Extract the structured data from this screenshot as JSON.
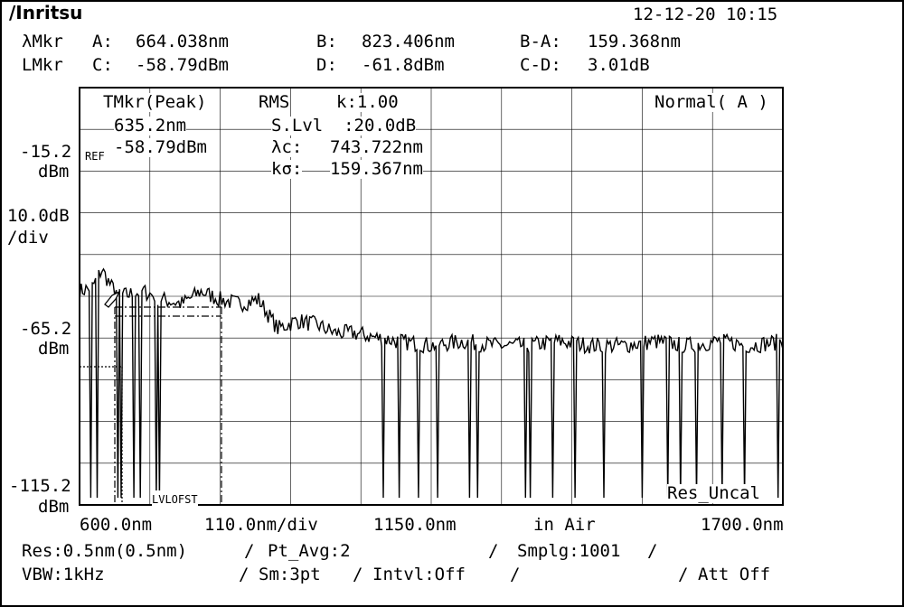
{
  "header": {
    "brand": "/Inritsu",
    "datetime": "12-12-20 10:15"
  },
  "markers": {
    "lambda_row": {
      "label": "λMkr",
      "a_label": "A:",
      "a_value": "664.038nm",
      "b_label": "B:",
      "b_value": "823.406nm",
      "ba_label": "B-A:",
      "ba_value": "159.368nm"
    },
    "level_row": {
      "label": "LMkr",
      "c_label": "C:",
      "c_value": "-58.79dBm",
      "d_label": "D:",
      "d_value": "-61.8dBm",
      "cd_label": "C-D:",
      "cd_value": "3.01dB"
    }
  },
  "overlay": {
    "tmkr_title": "TMkr(Peak)",
    "tmkr_wl": "635.2nm",
    "tmkr_level": "-58.79dBm",
    "rms_title": "RMS",
    "k_label": "k:1.00",
    "slvl": "S.Lvl  :20.0dB",
    "lambda_c_label": "λc:",
    "lambda_c_value": "743.722nm",
    "k_sigma_label": "kσ:",
    "k_sigma_value": "159.367nm",
    "mode": "Normal( A )",
    "ref_tag": "REF",
    "lvlofst": "LVLOFST",
    "res_uncal": "Res_Uncal"
  },
  "y_axis": {
    "top_value": "-15.2",
    "top_unit": "dBm",
    "scale_value": "10.0dB",
    "scale_unit": "/div",
    "mid_value": "-65.2",
    "mid_unit": "dBm",
    "bottom_value": "-115.2",
    "bottom_unit": "dBm"
  },
  "x_axis": {
    "start": "600.0nm",
    "per_div": "110.0nm/div",
    "center": "1150.0nm",
    "medium": "in Air",
    "stop": "1700.0nm"
  },
  "footer": {
    "res": "Res:0.5nm(0.5nm)",
    "pt_avg": "Pt_Avg:2",
    "smplg": "Smplg:1001",
    "vbw": "VBW:1kHz",
    "sm": "Sm:3pt",
    "intvl": "Intvl:Off",
    "att": "Att Off",
    "sep": "/"
  },
  "chart_data": {
    "type": "line",
    "title": "",
    "xlabel": "",
    "ylabel": "",
    "xlim": [
      600.0,
      1700.0
    ],
    "ylim": [
      -115.2,
      -15.2
    ],
    "grid": true,
    "x_ticks": [
      "600.0nm",
      "1150.0nm",
      "1700.0nm"
    ],
    "y_ticks": [
      "-15.2",
      "-65.2",
      "-115.2"
    ],
    "series": [
      {
        "x": [
          600,
          620,
          635,
          650,
          670,
          700,
          730,
          760,
          790,
          820,
          850,
          880,
          910,
          940,
          970,
          1000,
          1030,
          1060,
          1100,
          1150,
          1200,
          1250,
          1300,
          1350,
          1400,
          1450,
          1500,
          1550,
          1600,
          1650,
          1700
        ],
        "y": [
          -64,
          -63,
          -58.8,
          -63,
          -65,
          -64,
          -66,
          -67,
          -64,
          -66,
          -67,
          -66,
          -73,
          -71,
          -72,
          -74,
          -74,
          -75,
          -76,
          -77,
          -76,
          -77,
          -77,
          -76,
          -77,
          -77,
          -76,
          -77,
          -76,
          -77,
          -76
        ]
      }
    ],
    "dips_x": [
      618,
      628,
      660,
      665,
      686,
      695,
      720,
      726,
      1075,
      1100,
      1130,
      1160,
      1210,
      1222,
      1298,
      1305,
      1340,
      1375,
      1420,
      1480,
      1520,
      1540,
      1565,
      1605,
      1640,
      1692
    ]
  }
}
